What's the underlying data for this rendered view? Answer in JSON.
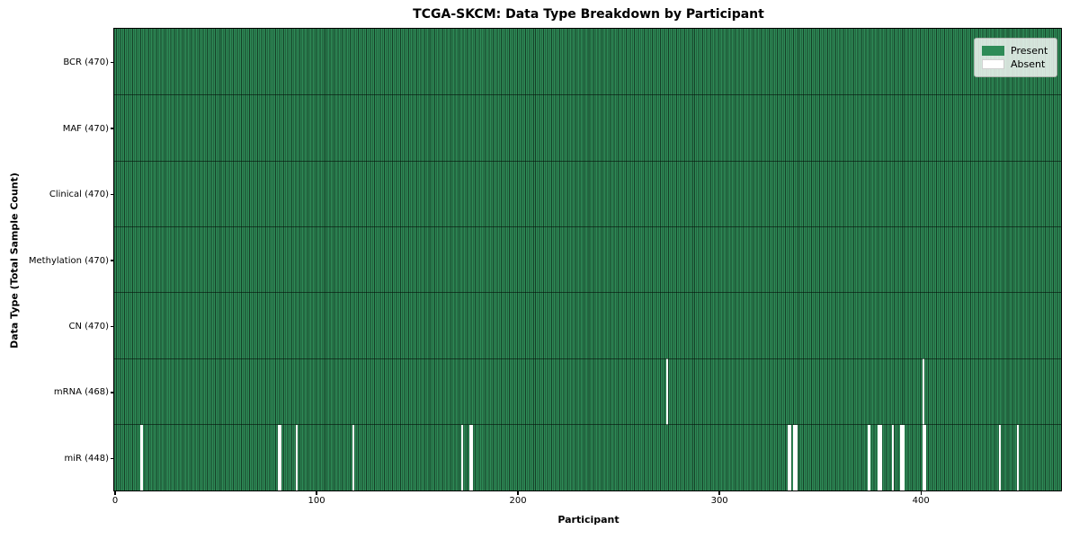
{
  "chart_data": {
    "type": "heatmap",
    "title": "TCGA-SKCM: Data Type Breakdown by Participant",
    "xlabel": "Participant",
    "ylabel": "Data Type (Total Sample Count)",
    "x_range": [
      0,
      470
    ],
    "x_ticks": [
      0,
      100,
      200,
      300,
      400
    ],
    "grid": false,
    "legend_position": "upper right",
    "rows": [
      {
        "name": "BCR",
        "label": "BCR (470)",
        "present_count": 470,
        "absent_participants": []
      },
      {
        "name": "MAF",
        "label": "MAF (470)",
        "present_count": 470,
        "absent_participants": []
      },
      {
        "name": "Clinical",
        "label": "Clinical (470)",
        "present_count": 470,
        "absent_participants": []
      },
      {
        "name": "Methylation",
        "label": "Methylation (470)",
        "present_count": 470,
        "absent_participants": []
      },
      {
        "name": "CN",
        "label": "CN (470)",
        "present_count": 470,
        "absent_participants": []
      },
      {
        "name": "mRNA",
        "label": "mRNA (468)",
        "present_count": 468,
        "absent_participants": [
          274,
          401
        ]
      },
      {
        "name": "miR",
        "label": "miR (448)",
        "present_count": 448,
        "absent_participants": [
          13,
          81,
          82,
          90,
          118,
          172,
          176,
          177,
          334,
          335,
          337,
          338,
          374,
          379,
          380,
          386,
          390,
          391,
          401,
          402,
          439,
          448
        ]
      }
    ],
    "legend": [
      {
        "label": "Present",
        "color": "#2e8b57"
      },
      {
        "label": "Absent",
        "color": "#ffffff"
      }
    ],
    "colors": {
      "present": "#2e8b57",
      "absent": "#ffffff",
      "cell_edge": "rgba(0,0,0,0.55)",
      "separator": "rgba(5,20,12,0.62)",
      "spine": "#000000"
    }
  }
}
